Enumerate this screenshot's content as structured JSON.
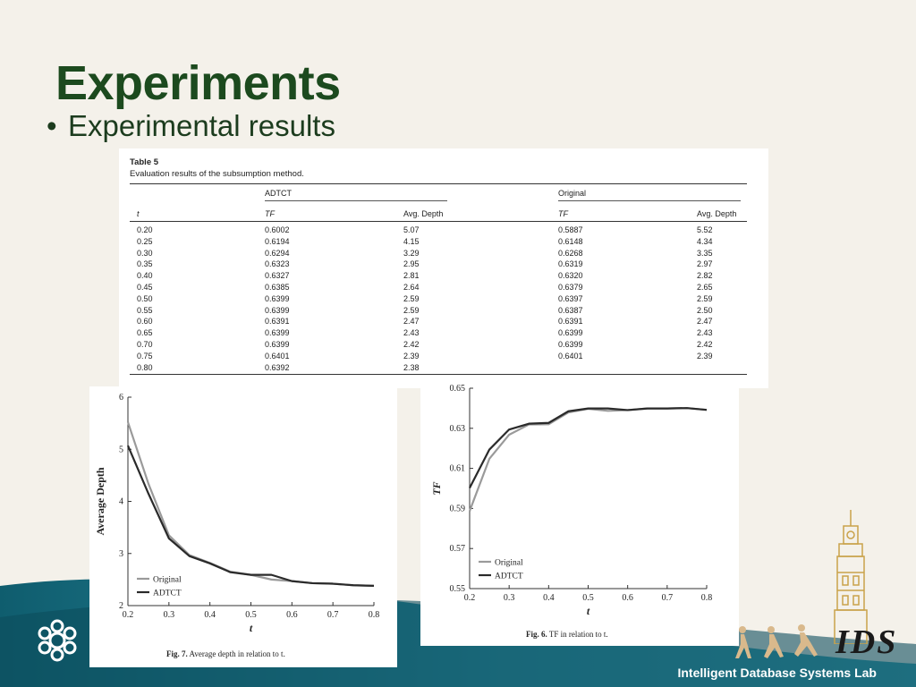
{
  "slide": {
    "title": "Experiments",
    "bullet": "Experimental results",
    "footer_lab": "Intelligent Database Systems Lab",
    "logo_text": "IDS",
    "colors": {
      "title": "#1c4a1e",
      "wave_dark": "#0f5d6e",
      "wave_light": "#3aa0b3",
      "background": "#f4f1ea"
    }
  },
  "table": {
    "label": "Table 5",
    "caption": "Evaluation results of the subsumption method.",
    "group_headers": [
      "ADTCT",
      "Original"
    ],
    "columns": [
      "t",
      "TF",
      "Avg. Depth",
      "TF",
      "Avg. Depth"
    ],
    "rows": [
      [
        "0.20",
        "0.6002",
        "5.07",
        "0.5887",
        "5.52"
      ],
      [
        "0.25",
        "0.6194",
        "4.15",
        "0.6148",
        "4.34"
      ],
      [
        "0.30",
        "0.6294",
        "3.29",
        "0.6268",
        "3.35"
      ],
      [
        "0.35",
        "0.6323",
        "2.95",
        "0.6319",
        "2.97"
      ],
      [
        "0.40",
        "0.6327",
        "2.81",
        "0.6320",
        "2.82"
      ],
      [
        "0.45",
        "0.6385",
        "2.64",
        "0.6379",
        "2.65"
      ],
      [
        "0.50",
        "0.6399",
        "2.59",
        "0.6397",
        "2.59"
      ],
      [
        "0.55",
        "0.6399",
        "2.59",
        "0.6387",
        "2.50"
      ],
      [
        "0.60",
        "0.6391",
        "2.47",
        "0.6391",
        "2.47"
      ],
      [
        "0.65",
        "0.6399",
        "2.43",
        "0.6399",
        "2.43"
      ],
      [
        "0.70",
        "0.6399",
        "2.42",
        "0.6399",
        "2.42"
      ],
      [
        "0.75",
        "0.6401",
        "2.39",
        "0.6401",
        "2.39"
      ],
      [
        "0.80",
        "0.6392",
        "2.38",
        "",
        ""
      ]
    ]
  },
  "chart_data": [
    {
      "type": "line",
      "caption_label": "Fig. 7.",
      "caption_text": "Average depth in relation to t.",
      "xlabel": "t",
      "ylabel": "Average Depth",
      "xlim": [
        0.2,
        0.8
      ],
      "ylim": [
        2,
        6
      ],
      "xticks": [
        "0.2",
        "0.3",
        "0.4",
        "0.5",
        "0.6",
        "0.7",
        "0.8"
      ],
      "yticks": [
        "2",
        "3",
        "4",
        "5",
        "6"
      ],
      "legend_position": "bottom-left",
      "x": [
        0.2,
        0.25,
        0.3,
        0.35,
        0.4,
        0.45,
        0.5,
        0.55,
        0.6,
        0.65,
        0.7,
        0.75,
        0.8
      ],
      "series": [
        {
          "name": "Original",
          "color": "#9a9a9a",
          "values": [
            5.52,
            4.34,
            3.35,
            2.97,
            2.82,
            2.65,
            2.59,
            2.5,
            2.47,
            2.43,
            2.42,
            2.39,
            2.38
          ]
        },
        {
          "name": "ADTCT",
          "color": "#2a2a2a",
          "values": [
            5.07,
            4.15,
            3.29,
            2.95,
            2.81,
            2.64,
            2.59,
            2.59,
            2.47,
            2.43,
            2.42,
            2.39,
            2.38
          ]
        }
      ]
    },
    {
      "type": "line",
      "caption_label": "Fig. 6.",
      "caption_text": "TF in relation to t.",
      "xlabel": "t",
      "ylabel": "TF",
      "xlim": [
        0.2,
        0.8
      ],
      "ylim": [
        0.55,
        0.65
      ],
      "xticks": [
        "0.2",
        "0.3",
        "0.4",
        "0.5",
        "0.6",
        "0.7",
        "0.8"
      ],
      "yticks": [
        "0.55",
        "0.57",
        "0.59",
        "0.61",
        "0.63",
        "0.65"
      ],
      "legend_position": "bottom-left",
      "x": [
        0.2,
        0.25,
        0.3,
        0.35,
        0.4,
        0.45,
        0.5,
        0.55,
        0.6,
        0.65,
        0.7,
        0.75,
        0.8
      ],
      "series": [
        {
          "name": "Original",
          "color": "#9a9a9a",
          "values": [
            0.5887,
            0.6148,
            0.6268,
            0.6319,
            0.632,
            0.6379,
            0.6397,
            0.6387,
            0.6391,
            0.6399,
            0.6399,
            0.6401,
            0.6392
          ]
        },
        {
          "name": "ADTCT",
          "color": "#2a2a2a",
          "values": [
            0.6002,
            0.6194,
            0.6294,
            0.6323,
            0.6327,
            0.6385,
            0.6399,
            0.6399,
            0.6391,
            0.6399,
            0.6399,
            0.6401,
            0.6392
          ]
        }
      ]
    }
  ]
}
